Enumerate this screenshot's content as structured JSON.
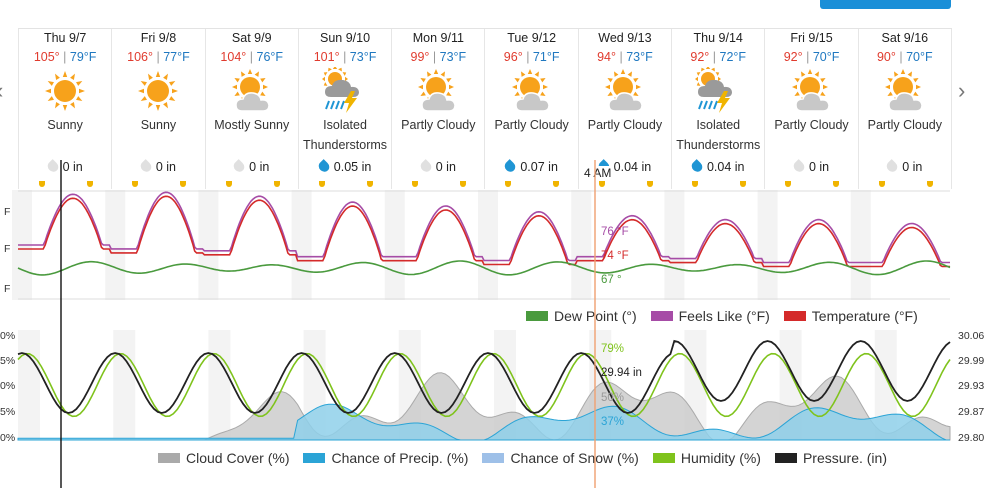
{
  "nav": {
    "prev_icon": "chevron-left-icon",
    "next_icon": "chevron-right-icon"
  },
  "days": [
    {
      "name": "Thu 9/7",
      "hi": "105°",
      "lo": "79°F",
      "cond": "Sunny",
      "icon": "sunny",
      "precip": "0 in",
      "wet": false
    },
    {
      "name": "Fri 9/8",
      "hi": "106°",
      "lo": "77°F",
      "cond": "Sunny",
      "icon": "sunny",
      "precip": "0 in",
      "wet": false
    },
    {
      "name": "Sat 9/9",
      "hi": "104°",
      "lo": "76°F",
      "cond": "Mostly Sunny",
      "icon": "partly",
      "precip": "0 in",
      "wet": false
    },
    {
      "name": "Sun 9/10",
      "hi": "101°",
      "lo": "73°F",
      "cond": "Isolated Thunderstorms",
      "icon": "storm",
      "precip": "0.05 in",
      "wet": true
    },
    {
      "name": "Mon 9/11",
      "hi": "99°",
      "lo": "73°F",
      "cond": "Partly Cloudy",
      "icon": "partly",
      "precip": "0 in",
      "wet": false
    },
    {
      "name": "Tue 9/12",
      "hi": "96°",
      "lo": "71°F",
      "cond": "Partly Cloudy",
      "icon": "partly",
      "precip": "0.07 in",
      "wet": true
    },
    {
      "name": "Wed 9/13",
      "hi": "94°",
      "lo": "73°F",
      "cond": "Partly Cloudy",
      "icon": "partly",
      "precip": "0.04 in",
      "wet": true
    },
    {
      "name": "Thu 9/14",
      "hi": "92°",
      "lo": "72°F",
      "cond": "Isolated Thunderstorms",
      "icon": "storm",
      "precip": "0.04 in",
      "wet": true
    },
    {
      "name": "Fri 9/15",
      "hi": "92°",
      "lo": "70°F",
      "cond": "Partly Cloudy",
      "icon": "partly",
      "precip": "0 in",
      "wet": false
    },
    {
      "name": "Sat 9/16",
      "hi": "90°",
      "lo": "70°F",
      "cond": "Partly Cloudy",
      "icon": "partly",
      "precip": "0 in",
      "wet": false
    }
  ],
  "hover": {
    "time": "4 AM",
    "feels_like": "76 °F",
    "temperature": "74 °F",
    "dew_point": "67 °",
    "humidity": "79%",
    "pressure": "29.94 in",
    "cloud_cover": "50%",
    "precip_chance": "37%"
  },
  "legend_top": [
    {
      "label": "Dew Point (°)",
      "color": "#4a9a3e"
    },
    {
      "label": "Feels Like (°F)",
      "color": "#a64ca6"
    },
    {
      "label": "Temperature (°F)",
      "color": "#d42a2a"
    }
  ],
  "legend_bottom": [
    {
      "label": "Cloud Cover (%)",
      "color": "#aaaaaa"
    },
    {
      "label": "Chance of Precip. (%)",
      "color": "#2ba4d6"
    },
    {
      "label": "Chance of Snow (%)",
      "color": "#9ec0e8"
    },
    {
      "label": "Humidity (%)",
      "color": "#7fc31c"
    },
    {
      "label": "Pressure. (in)",
      "color": "#222222"
    }
  ],
  "axis_top_left": [
    "F",
    "F",
    "F"
  ],
  "axis_bottom_left": [
    "0%",
    "5%",
    "0%",
    "5%",
    "0%"
  ],
  "axis_bottom_right": [
    "30.06",
    "29.99",
    "29.93",
    "29.87",
    "29.80"
  ],
  "colors": {
    "sun": "#f7a21b",
    "cloud": "#c8c8c8",
    "rain": "#1f95d4",
    "bolt": "#f0b400",
    "hi": "#e03b2e",
    "lo": "#1f78c0"
  }
}
